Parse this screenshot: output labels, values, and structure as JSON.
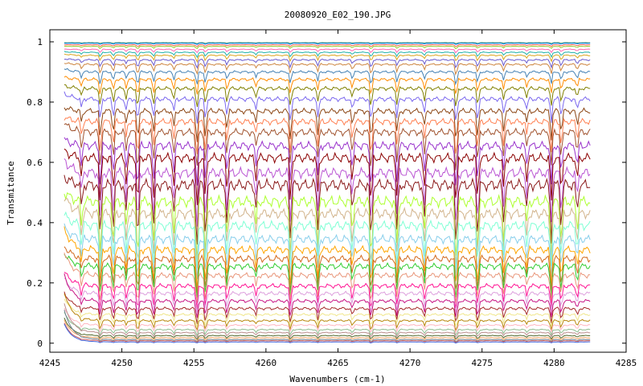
{
  "chart_data": {
    "type": "line",
    "title": "20080920_E02_190.JPG",
    "xlabel": "Wavenumbers (cm-1)",
    "ylabel": "Transmitance",
    "xlim": [
      4245,
      4285
    ],
    "ylim": [
      -0.03,
      1.04
    ],
    "x_data_range": [
      4246,
      4282.5
    ],
    "xticks": [
      4245,
      4250,
      4255,
      4260,
      4265,
      4270,
      4275,
      4280,
      4285
    ],
    "yticks": [
      0,
      0.2,
      0.4,
      0.6,
      0.8,
      1
    ],
    "xtick_labels": [
      "4245",
      "4250",
      "4255",
      "4260",
      "4265",
      "4270",
      "4275",
      "4280",
      "4285"
    ],
    "ytick_labels": [
      "0",
      "0.2",
      "0.4",
      "0.6",
      "0.8",
      "1"
    ],
    "grid": false,
    "legend": "none",
    "absorption_lines": [
      4247.2,
      4248.5,
      4249.4,
      4250.3,
      4251.1,
      4252.2,
      4253.6,
      4255.2,
      4255.8,
      4257.3,
      4259.3,
      4261.7,
      4263.6,
      4266.0,
      4267.3,
      4269.1,
      4271.0,
      4273.2,
      4274.7,
      4276.5,
      4278.1,
      4279.8,
      4280.5,
      4281.6
    ],
    "series_levels": [
      0.997,
      0.995,
      0.99,
      0.985,
      0.975,
      0.965,
      0.955,
      0.94,
      0.925,
      0.9,
      0.875,
      0.845,
      0.81,
      0.77,
      0.735,
      0.7,
      0.655,
      0.615,
      0.565,
      0.525,
      0.47,
      0.43,
      0.39,
      0.345,
      0.31,
      0.28,
      0.255,
      0.225,
      0.19,
      0.165,
      0.14,
      0.115,
      0.095,
      0.075,
      0.06,
      0.045,
      0.035,
      0.025,
      0.018,
      0.012,
      0.008,
      0.004
    ],
    "series_colors": [
      "#2e8b57",
      "#1e90ff",
      "#ff6347",
      "#9acd32",
      "#ff69b4",
      "#20b2aa",
      "#daa520",
      "#6a5acd",
      "#cd853f",
      "#4682b4",
      "#ff8c00",
      "#808000",
      "#7b68ee",
      "#8b4513",
      "#ff7f50",
      "#a0522d",
      "#9932cc",
      "#8b0000",
      "#ba55d3",
      "#8b1a1a",
      "#adff2f",
      "#d2b48c",
      "#7fffd4",
      "#87ceeb",
      "#ffa500",
      "#d2691e",
      "#32cd32",
      "#e9967a",
      "#ff1493",
      "#dda0dd",
      "#c71585",
      "#a52a2a",
      "#f0e68c",
      "#b8860b",
      "#ffb6c1",
      "#8fbc8f",
      "#bc8f8f",
      "#556b2f",
      "#f4a460",
      "#708090",
      "#cd5c5c",
      "#4169e1"
    ]
  }
}
